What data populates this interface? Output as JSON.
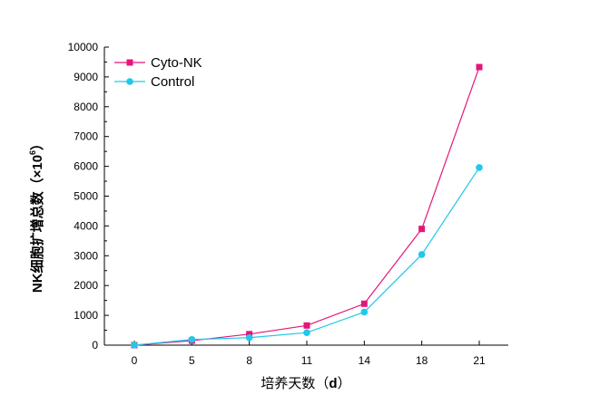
{
  "chart_data": {
    "type": "line",
    "categories": [
      "0",
      "5",
      "8",
      "11",
      "14",
      "18",
      "21"
    ],
    "series": [
      {
        "name": "Cyto-NK",
        "color": "#e6157a",
        "marker": "square",
        "values": [
          0,
          150,
          370,
          660,
          1390,
          3900,
          9330
        ]
      },
      {
        "name": "Control",
        "color": "#21c8ea",
        "marker": "circle",
        "values": [
          0,
          190,
          250,
          420,
          1110,
          3040,
          5960
        ]
      }
    ],
    "ylim": [
      0,
      10000
    ],
    "yticks": [
      0,
      1000,
      2000,
      3000,
      4000,
      5000,
      6000,
      7000,
      8000,
      9000,
      10000
    ],
    "ylabel_main": "NK细胞扩增总数（×10",
    "ylabel_exp": "6",
    "ylabel_close": "）",
    "xlabel_main": "培养天数（",
    "xlabel_unit": "d",
    "xlabel_close": "）",
    "legend_position": "top-left",
    "title": ""
  }
}
